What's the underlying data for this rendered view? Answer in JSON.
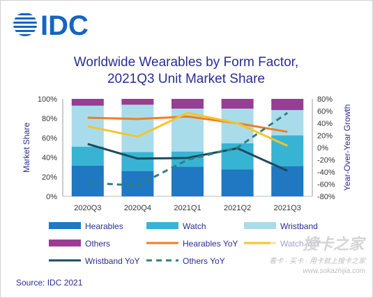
{
  "logo_text": "IDC",
  "source": "Source: IDC 2021",
  "watermark": {
    "main": "搜卡之家",
    "sub": "看卡 · 买卡 · 用卡就上搜卡之家",
    "url": "www.sokazhijia.com"
  },
  "colors": {
    "Hearables": "#1f78c1",
    "Watch": "#37b4d3",
    "Wristband": "#a9dcea",
    "Others": "#9b3c93",
    "Hearables YoY": "#ef7d2a",
    "Watch YoY": "#f6c42a",
    "Wristband YoY": "#1b4a5f",
    "Others YoY": "#2f7f80",
    "title": "#2a2d8f"
  },
  "chart_data": {
    "type": "bar",
    "stacked": true,
    "title": [
      "Worldwide Wearables by Form Factor,",
      "2021Q3 Unit Market Share"
    ],
    "categories": [
      "2020Q3",
      "2020Q4",
      "2021Q1",
      "2021Q2",
      "2021Q3"
    ],
    "ylabel": "Market Share",
    "y2label": "Year-Over-Year  Growth",
    "ylim": [
      0,
      100
    ],
    "y2lim": [
      -80,
      80
    ],
    "yticks": [
      "0%",
      "20%",
      "40%",
      "60%",
      "80%",
      "100%"
    ],
    "y2ticks": [
      "-80%",
      "-60%",
      "-40%",
      "-20%",
      "0%",
      "20%",
      "40%",
      "60%",
      "80%"
    ],
    "series": [
      {
        "name": "Hearables",
        "kind": "bar",
        "values": [
          31.5,
          26,
          30.5,
          27.5,
          31
        ]
      },
      {
        "name": "Watch",
        "kind": "bar",
        "values": [
          19.5,
          19.5,
          15.5,
          27,
          31.5
        ]
      },
      {
        "name": "Wristband",
        "kind": "bar",
        "values": [
          42,
          48.5,
          44,
          35.5,
          26
        ]
      },
      {
        "name": "Others",
        "kind": "bar",
        "values": [
          7,
          6,
          10,
          10,
          11.5
        ]
      }
    ],
    "yoy_series": [
      {
        "name": "Hearables YoY",
        "style": "solid",
        "values": [
          49,
          47,
          51,
          40,
          26
        ]
      },
      {
        "name": "Watch YoY",
        "style": "solid",
        "values": [
          35,
          18,
          57,
          40,
          3
        ]
      },
      {
        "name": "Wristband YoY",
        "style": "solid",
        "values": [
          6,
          -18,
          -17,
          -1,
          -38
        ]
      },
      {
        "name": "Others YoY",
        "style": "dashed",
        "values": [
          -58,
          -62,
          -20,
          0,
          57
        ]
      }
    ],
    "legend": {
      "placement": "bottom",
      "items": [
        "Hearables",
        "Watch",
        "Wristband",
        "Others",
        "Hearables YoY",
        "Watch YoY",
        "Wristband YoY",
        "Others YoY"
      ]
    },
    "grid": false
  }
}
